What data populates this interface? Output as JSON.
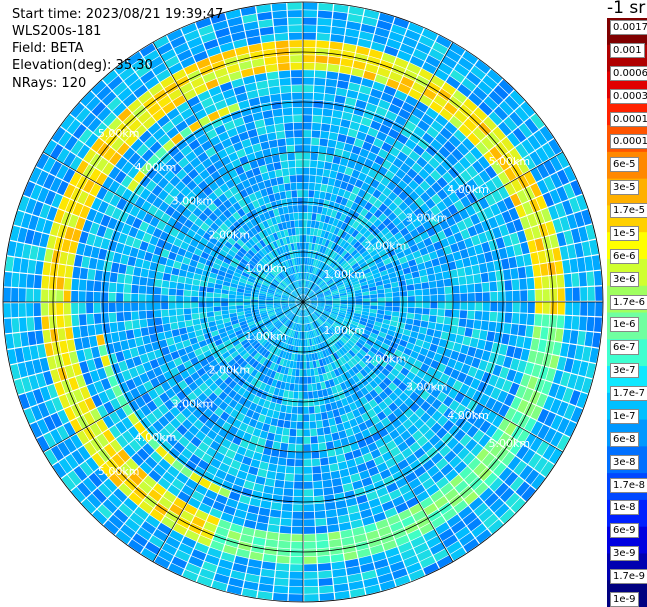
{
  "info": {
    "start_time": "Start time: 2023/08/21 19:39:47",
    "device": "WLS200s-181",
    "field": "Field: BETA",
    "elevation": "Elevation(deg): 35.30",
    "nrays": "NRays: 120"
  },
  "colorbar": {
    "unit": "-1 sr",
    "tick_labels": [
      "0.0017",
      "0.001",
      "0.0006",
      "0.0003",
      "0.00017",
      "0.0001",
      "6e-5",
      "3e-5",
      "1.7e-5",
      "1e-5",
      "6e-6",
      "3e-6",
      "1.7e-6",
      "1e-6",
      "6e-7",
      "3e-7",
      "1.7e-7",
      "1e-7",
      "6e-8",
      "3e-8",
      "1.7e-8",
      "1e-8",
      "6e-9",
      "3e-9",
      "1.7e-9",
      "1e-9"
    ],
    "colors": [
      "#7f0000",
      "#b00000",
      "#e00000",
      "#ff2200",
      "#ff5500",
      "#ff8800",
      "#ffb000",
      "#ffd000",
      "#ffff00",
      "#d0ff30",
      "#a0ff60",
      "#70ffa0",
      "#40ffd0",
      "#10e8ff",
      "#00c0ff",
      "#0098ff",
      "#0070ff",
      "#0048ff",
      "#0020ff",
      "#0000e0",
      "#0000b0",
      "#000080"
    ]
  },
  "chart_data": {
    "type": "ppi",
    "field": "BETA",
    "elevation_deg": 35.3,
    "n_rays": 120,
    "range_unit": "km",
    "range_rings_km": [
      1,
      2,
      3,
      4,
      5
    ],
    "range_ring_labels": [
      "1.00km",
      "2.00km",
      "3.00km",
      "4.00km",
      "5.00km"
    ],
    "max_range_km": 6,
    "aerosol_layer_range_km": [
      4.7,
      5.2
    ],
    "inner_ring_range_km": [
      4.0,
      4.2
    ],
    "scale": "log",
    "value_range": [
      1e-09,
      0.0017
    ]
  }
}
